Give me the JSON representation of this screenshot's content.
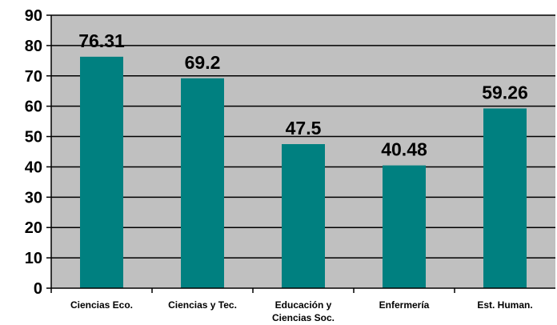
{
  "chart_data": {
    "type": "bar",
    "title": "",
    "xlabel": "",
    "ylabel": "",
    "categories": [
      [
        "Ciencias Eco."
      ],
      [
        "Ciencias y Tec."
      ],
      [
        "Educación y",
        "Ciencias Soc."
      ],
      [
        "Enfermería"
      ],
      [
        "Est. Human."
      ]
    ],
    "values": [
      76.31,
      69.2,
      47.5,
      40.48,
      59.26
    ],
    "value_labels": [
      "76.31",
      "69.2",
      "47.5",
      "40.48",
      "59.26"
    ],
    "ylim": [
      0,
      90
    ],
    "yticks": [
      0,
      10,
      20,
      30,
      40,
      50,
      60,
      70,
      80,
      90
    ],
    "grid": true,
    "legend": "none",
    "colors": {
      "bar": "#008080",
      "plot_background": "#c0c0c0",
      "gridline": "#000000"
    }
  }
}
